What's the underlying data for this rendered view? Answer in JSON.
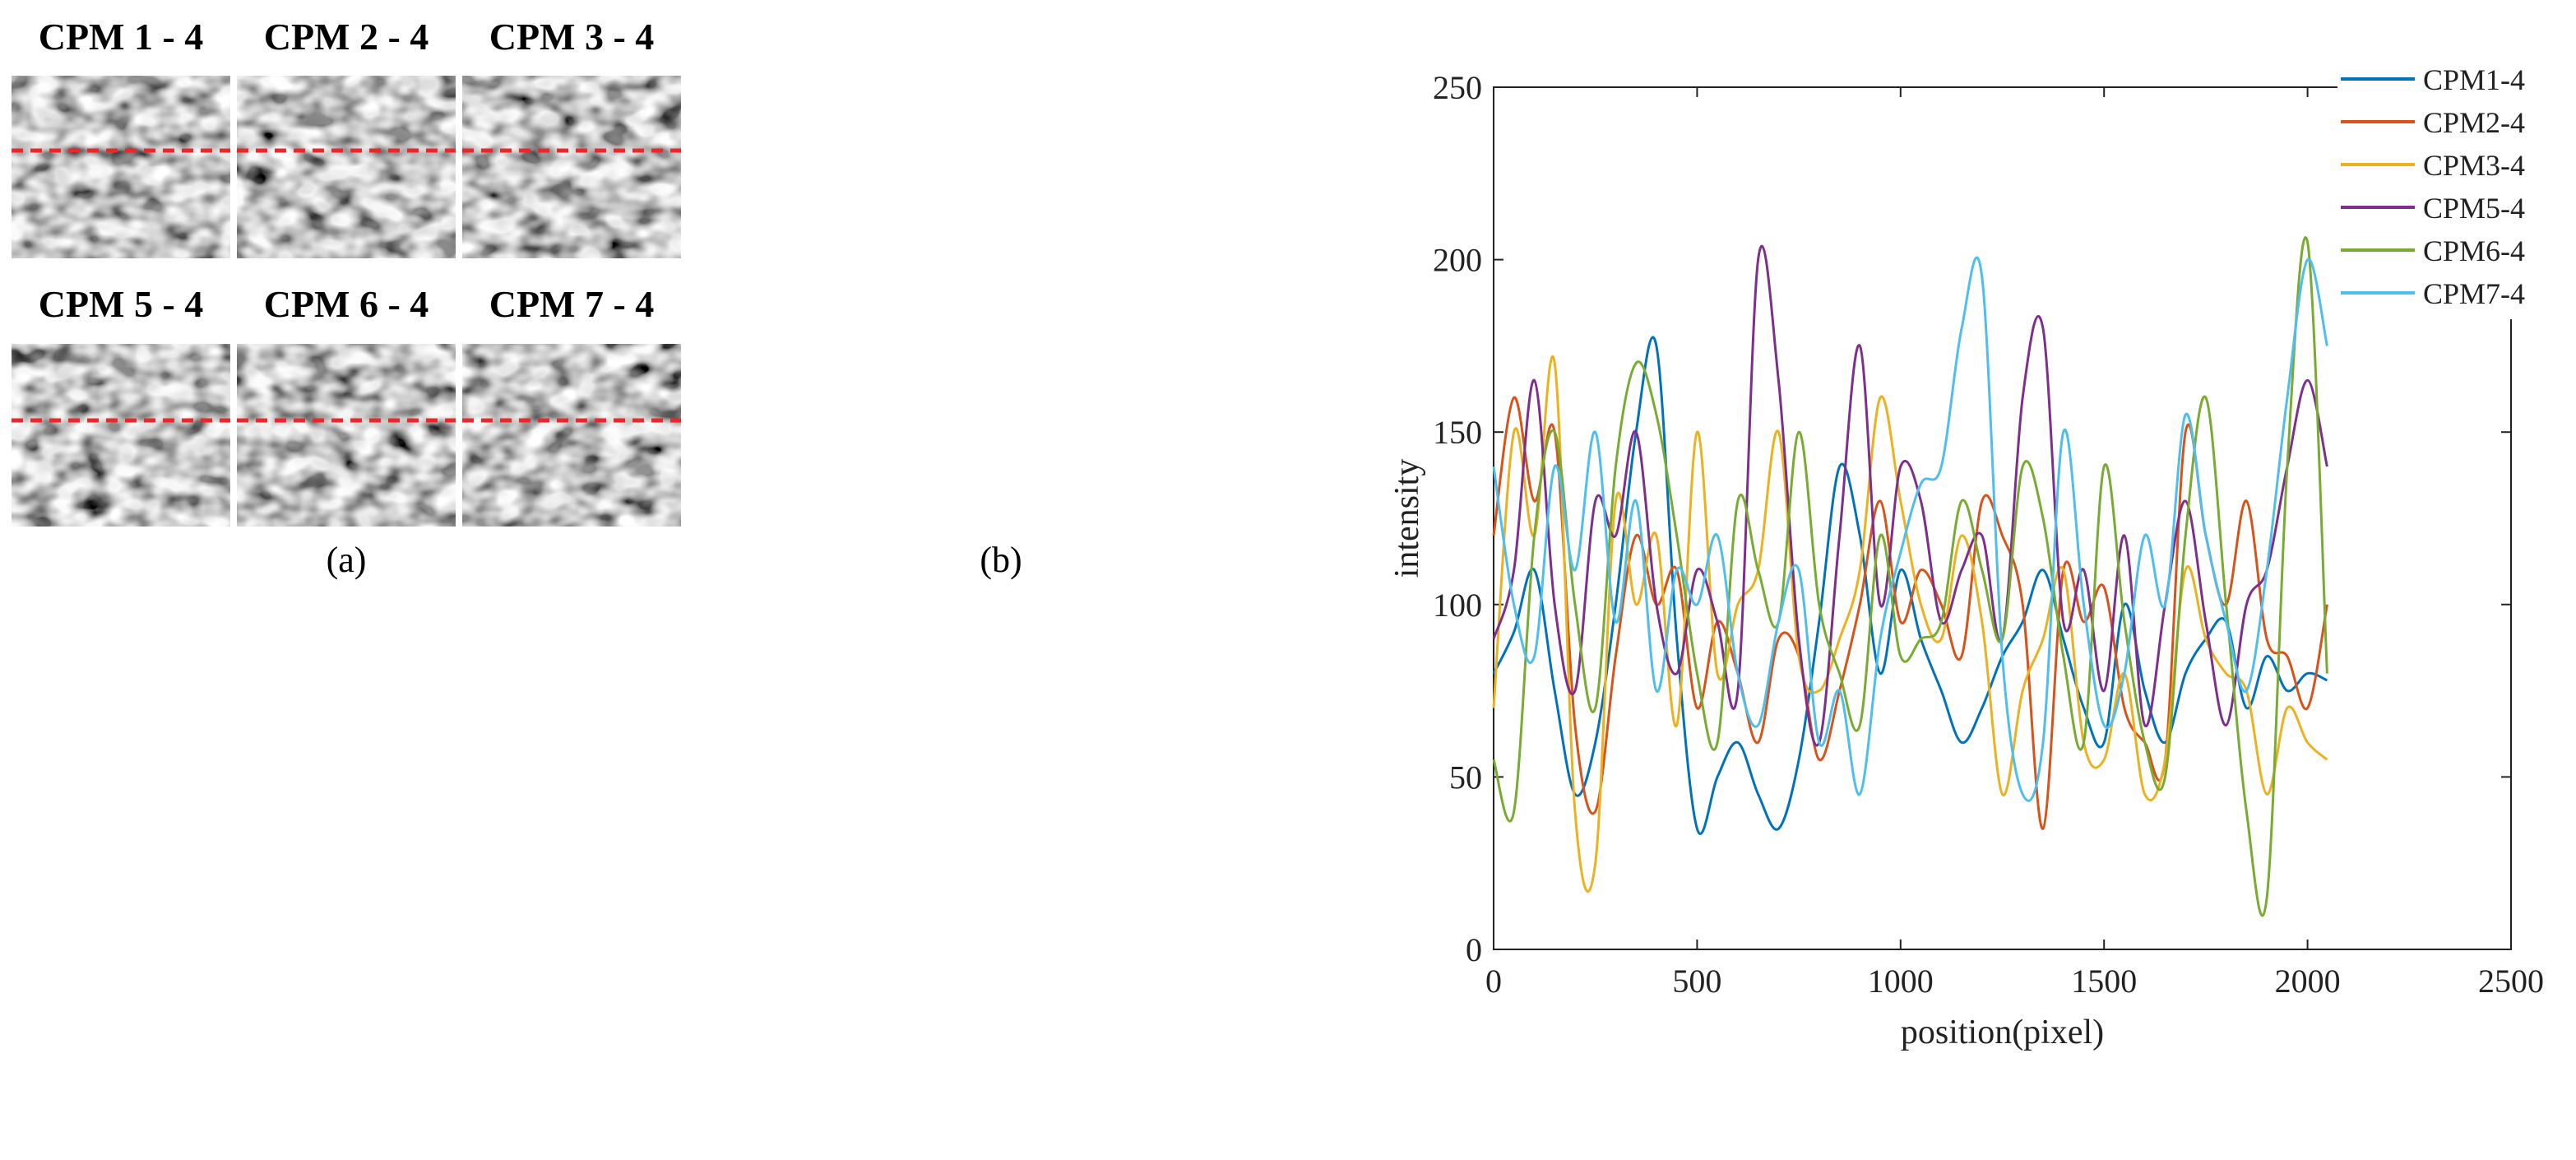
{
  "panel_a": {
    "caption": "(a)",
    "images": [
      {
        "title": "CPM 1 - 4",
        "seed": 11
      },
      {
        "title": "CPM 2 - 4",
        "seed": 23
      },
      {
        "title": "CPM 3 - 4",
        "seed": 37
      },
      {
        "title": "CPM 5 - 4",
        "seed": 41
      },
      {
        "title": "CPM 6 - 4",
        "seed": 53
      },
      {
        "title": "CPM 7 - 4",
        "seed": 67
      }
    ],
    "line_color": "#e8282b"
  },
  "panel_b": {
    "caption": "(b)"
  },
  "chart_data": {
    "type": "line",
    "title": "",
    "xlabel": "position(pixel)",
    "ylabel": "intensity",
    "xlim": [
      0,
      2500
    ],
    "ylim": [
      0,
      250
    ],
    "xticks": [
      0,
      500,
      1000,
      1500,
      2000,
      2500
    ],
    "yticks": [
      0,
      50,
      100,
      150,
      200,
      250
    ],
    "legend_position": "top-right",
    "x": [
      0,
      50,
      100,
      150,
      200,
      250,
      300,
      350,
      400,
      450,
      500,
      550,
      600,
      650,
      700,
      750,
      800,
      850,
      900,
      950,
      1000,
      1050,
      1100,
      1150,
      1200,
      1250,
      1300,
      1350,
      1400,
      1450,
      1500,
      1550,
      1600,
      1650,
      1700,
      1750,
      1800,
      1850,
      1900,
      1950,
      2000,
      2048
    ],
    "series": [
      {
        "name": "CPM1-4",
        "color": "#0072bd",
        "values": [
          80,
          92,
          110,
          75,
          45,
          60,
          100,
          150,
          175,
          90,
          35,
          50,
          60,
          45,
          35,
          55,
          95,
          140,
          120,
          80,
          110,
          90,
          75,
          60,
          70,
          85,
          95,
          110,
          90,
          70,
          60,
          100,
          75,
          60,
          80,
          90,
          95,
          70,
          85,
          75,
          80,
          78
        ]
      },
      {
        "name": "CPM2-4",
        "color": "#d95319",
        "values": [
          120,
          160,
          130,
          150,
          65,
          40,
          85,
          120,
          100,
          110,
          70,
          95,
          80,
          60,
          90,
          85,
          55,
          75,
          100,
          130,
          95,
          110,
          100,
          85,
          130,
          120,
          100,
          35,
          110,
          95,
          105,
          70,
          60,
          55,
          150,
          120,
          100,
          130,
          90,
          85,
          70,
          100
        ]
      },
      {
        "name": "CPM3-4",
        "color": "#edb120",
        "values": [
          70,
          150,
          120,
          170,
          40,
          25,
          130,
          100,
          120,
          65,
          150,
          80,
          100,
          110,
          150,
          85,
          75,
          90,
          110,
          160,
          130,
          100,
          90,
          120,
          95,
          45,
          75,
          90,
          110,
          60,
          55,
          80,
          45,
          55,
          110,
          90,
          80,
          75,
          45,
          70,
          60,
          55
        ]
      },
      {
        "name": "CPM5-4",
        "color": "#7e2f8e",
        "values": [
          90,
          110,
          165,
          100,
          75,
          130,
          120,
          150,
          100,
          80,
          110,
          95,
          75,
          200,
          165,
          90,
          60,
          120,
          175,
          100,
          140,
          130,
          95,
          110,
          120,
          90,
          160,
          180,
          95,
          110,
          75,
          120,
          65,
          100,
          130,
          95,
          65,
          100,
          110,
          140,
          165,
          140
        ]
      },
      {
        "name": "CPM6-4",
        "color": "#77ac30",
        "values": [
          55,
          40,
          120,
          150,
          100,
          70,
          140,
          170,
          155,
          120,
          80,
          60,
          130,
          110,
          95,
          150,
          100,
          80,
          65,
          120,
          85,
          90,
          95,
          130,
          110,
          90,
          140,
          125,
          85,
          60,
          140,
          95,
          60,
          50,
          120,
          160,
          100,
          40,
          15,
          140,
          205,
          80
        ]
      },
      {
        "name": "CPM7-4",
        "color": "#4dbeee",
        "values": [
          140,
          100,
          85,
          140,
          110,
          150,
          95,
          130,
          75,
          110,
          100,
          120,
          80,
          65,
          95,
          110,
          60,
          75,
          45,
          90,
          115,
          135,
          140,
          180,
          195,
          85,
          45,
          60,
          150,
          100,
          65,
          80,
          120,
          100,
          155,
          120,
          95,
          75,
          110,
          160,
          200,
          175
        ]
      }
    ]
  }
}
